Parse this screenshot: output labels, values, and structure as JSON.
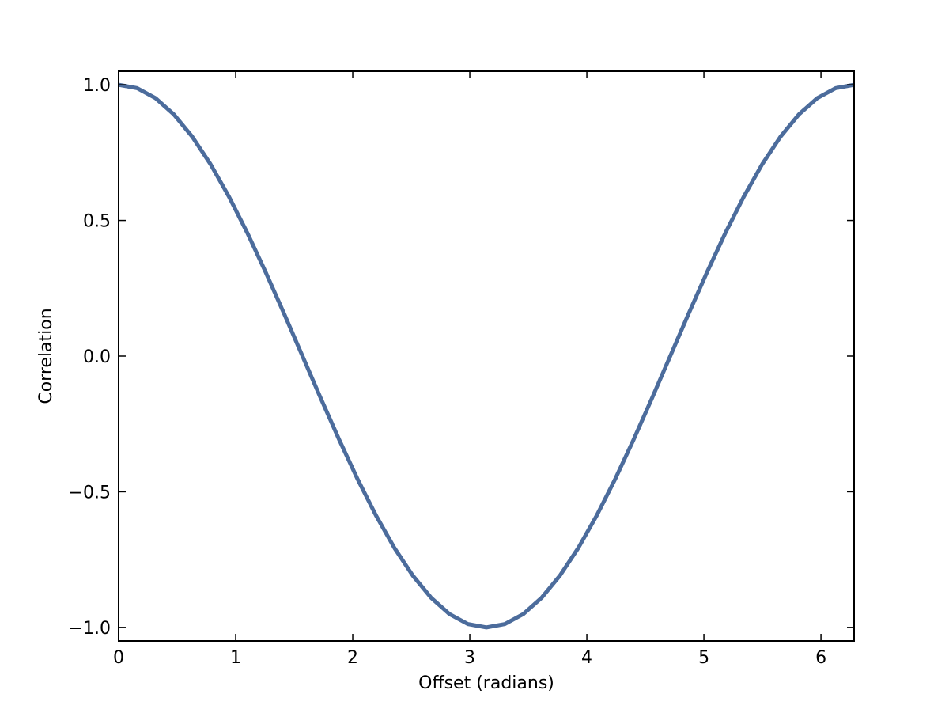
{
  "chart_data": {
    "type": "line",
    "title": "",
    "xlabel": "Offset (radians)",
    "ylabel": "Correlation",
    "xlim": [
      0,
      6.283185307
    ],
    "ylim": [
      -1.05,
      1.05
    ],
    "grid": false,
    "legend": "none",
    "xticks": [
      0,
      1,
      2,
      3,
      4,
      5,
      6
    ],
    "xtick_labels": [
      "0",
      "1",
      "2",
      "3",
      "4",
      "5",
      "6"
    ],
    "yticks": [
      -1.0,
      -0.5,
      0.0,
      0.5,
      1.0
    ],
    "ytick_labels": [
      "−1.0",
      "−0.5",
      "0.0",
      "0.5",
      "1.0"
    ],
    "series": [
      {
        "color": "#4c6c9c",
        "x": [
          0,
          0.1571,
          0.3142,
          0.4712,
          0.6283,
          0.7854,
          0.9425,
          1.0996,
          1.2566,
          1.4137,
          1.5708,
          1.7279,
          1.885,
          2.042,
          2.1991,
          2.3562,
          2.5133,
          2.6704,
          2.8274,
          2.9845,
          3.1416,
          3.2987,
          3.4558,
          3.6128,
          3.7699,
          3.927,
          4.0841,
          4.2412,
          4.3982,
          4.5553,
          4.7124,
          4.8695,
          5.0265,
          5.1836,
          5.3407,
          5.4978,
          5.6549,
          5.8119,
          5.969,
          6.1261,
          6.2832
        ],
        "y": [
          1.0,
          0.9877,
          0.9511,
          0.891,
          0.809,
          0.7071,
          0.5878,
          0.454,
          0.309,
          0.1564,
          0.0,
          -0.1564,
          -0.309,
          -0.454,
          -0.5878,
          -0.7071,
          -0.809,
          -0.891,
          -0.9511,
          -0.9877,
          -1.0,
          -0.9877,
          -0.9511,
          -0.891,
          -0.809,
          -0.7071,
          -0.5878,
          -0.454,
          -0.309,
          -0.1564,
          0.0,
          0.1564,
          0.309,
          0.454,
          0.5878,
          0.7071,
          0.809,
          0.891,
          0.9511,
          0.9877,
          1.0
        ]
      }
    ]
  }
}
